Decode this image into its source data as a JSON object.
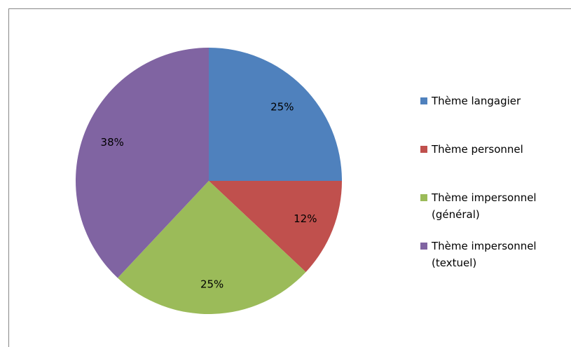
{
  "chart_data": {
    "type": "pie",
    "categories": [
      "Thème langagier",
      "Thème personnel",
      "Thème impersonnel (général)",
      "Thème impersonnel (textuel)"
    ],
    "values": [
      25,
      12,
      25,
      38
    ],
    "value_labels": [
      "25%",
      "12%",
      "25%",
      "38%"
    ],
    "colors": [
      "#4f81bd",
      "#c0504d",
      "#9bbb59",
      "#8064a2"
    ],
    "legend": "right"
  }
}
